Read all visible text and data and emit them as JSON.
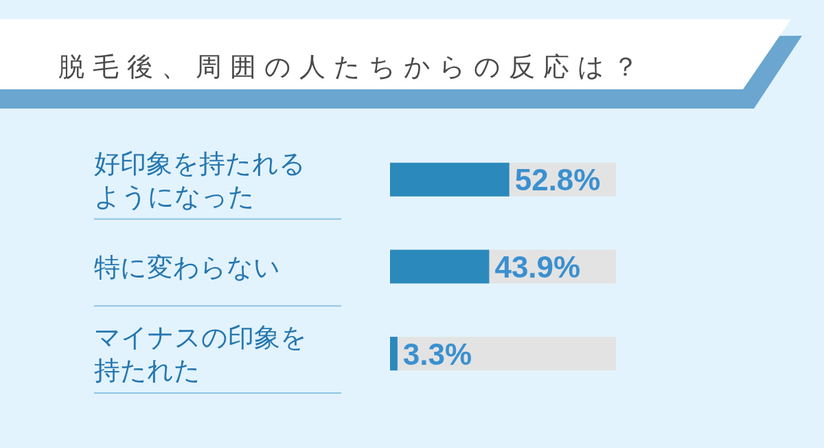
{
  "chart_data": {
    "type": "bar",
    "orientation": "horizontal",
    "title": "脱毛後、周囲の人たちからの反応は？",
    "categories": [
      "好印象を持たれるようになった",
      "特に変わらない",
      "マイナスの印象を持たれた"
    ],
    "values": [
      52.8,
      43.9,
      3.3
    ],
    "value_labels": [
      "52.8%",
      "43.9%",
      "3.3%"
    ],
    "color": "#2b8abb",
    "xlim": [
      0,
      100
    ]
  }
}
